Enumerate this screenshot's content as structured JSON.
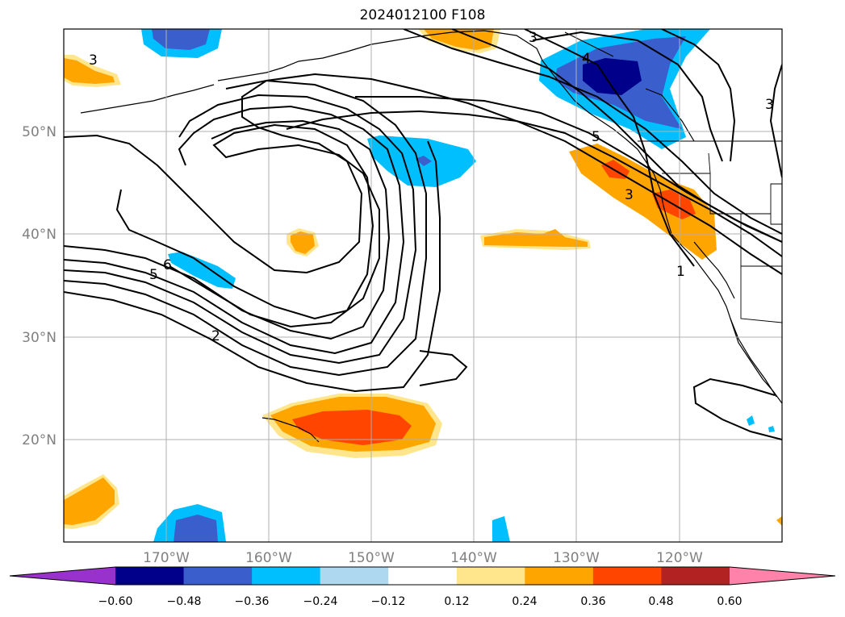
{
  "title": "2024012100 F108",
  "map": {
    "lat_labels": [
      "50°N",
      "40°N",
      "30°N",
      "20°N"
    ],
    "lon_labels": [
      "170°W",
      "160°W",
      "150°W",
      "140°W",
      "130°W",
      "120°W"
    ],
    "contour_labels": [
      "6",
      "5",
      "2",
      "3",
      "4",
      "5",
      "3",
      "3",
      "1",
      "3"
    ]
  },
  "colorbar": {
    "tick_labels": [
      "−0.60",
      "−0.48",
      "−0.36",
      "−0.24",
      "−0.12",
      "0.12",
      "0.24",
      "0.36",
      "0.48",
      "0.60"
    ],
    "colors": [
      "#9932cc",
      "#00008b",
      "#3a5fcd",
      "#00bfff",
      "#add8f0",
      "#ffffff",
      "#ffe68c",
      "#ffa500",
      "#ff4500",
      "#b22222",
      "#ff82ab"
    ]
  },
  "colors": {
    "neg_strong": "#00008b",
    "neg_mid": "#3a5fcd",
    "neg_light": "#00bfff",
    "neg_faint": "#add8f0",
    "pos_faint": "#ffe68c",
    "pos_light": "#ffa500",
    "pos_mid": "#ff4500",
    "pos_strong": "#b22222"
  }
}
